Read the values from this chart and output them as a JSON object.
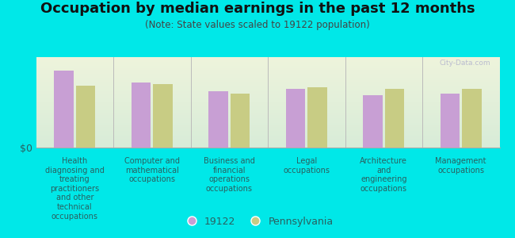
{
  "title": "Occupation by median earnings in the past 12 months",
  "subtitle": "(Note: State values scaled to 19122 population)",
  "categories": [
    "Health\ndiagnosing and\ntreating\npractitioners\nand other\ntechnical\noccupations",
    "Computer and\nmathematical\noccupations",
    "Business and\nfinancial\noperations\noccupations",
    "Legal\noccupations",
    "Architecture\nand\nengineering\noccupations",
    "Management\noccupations"
  ],
  "values_19122": [
    85,
    72,
    62,
    65,
    58,
    60
  ],
  "values_pennsylvania": [
    68,
    70,
    60,
    67,
    65,
    65
  ],
  "color_19122": "#c89fd4",
  "color_pennsylvania": "#c8cc84",
  "background_color": "#00e8e8",
  "plot_bg_top": "#eef4dc",
  "plot_bg_bottom": "#d8ecd8",
  "ylabel": "$0",
  "legend_label_1": "19122",
  "legend_label_2": "Pennsylvania",
  "watermark": "City-Data.com",
  "title_fontsize": 13,
  "subtitle_fontsize": 8.5,
  "tick_fontsize": 7,
  "legend_fontsize": 9,
  "ymax": 100,
  "bar_width": 0.25,
  "bar_gap": 0.03
}
